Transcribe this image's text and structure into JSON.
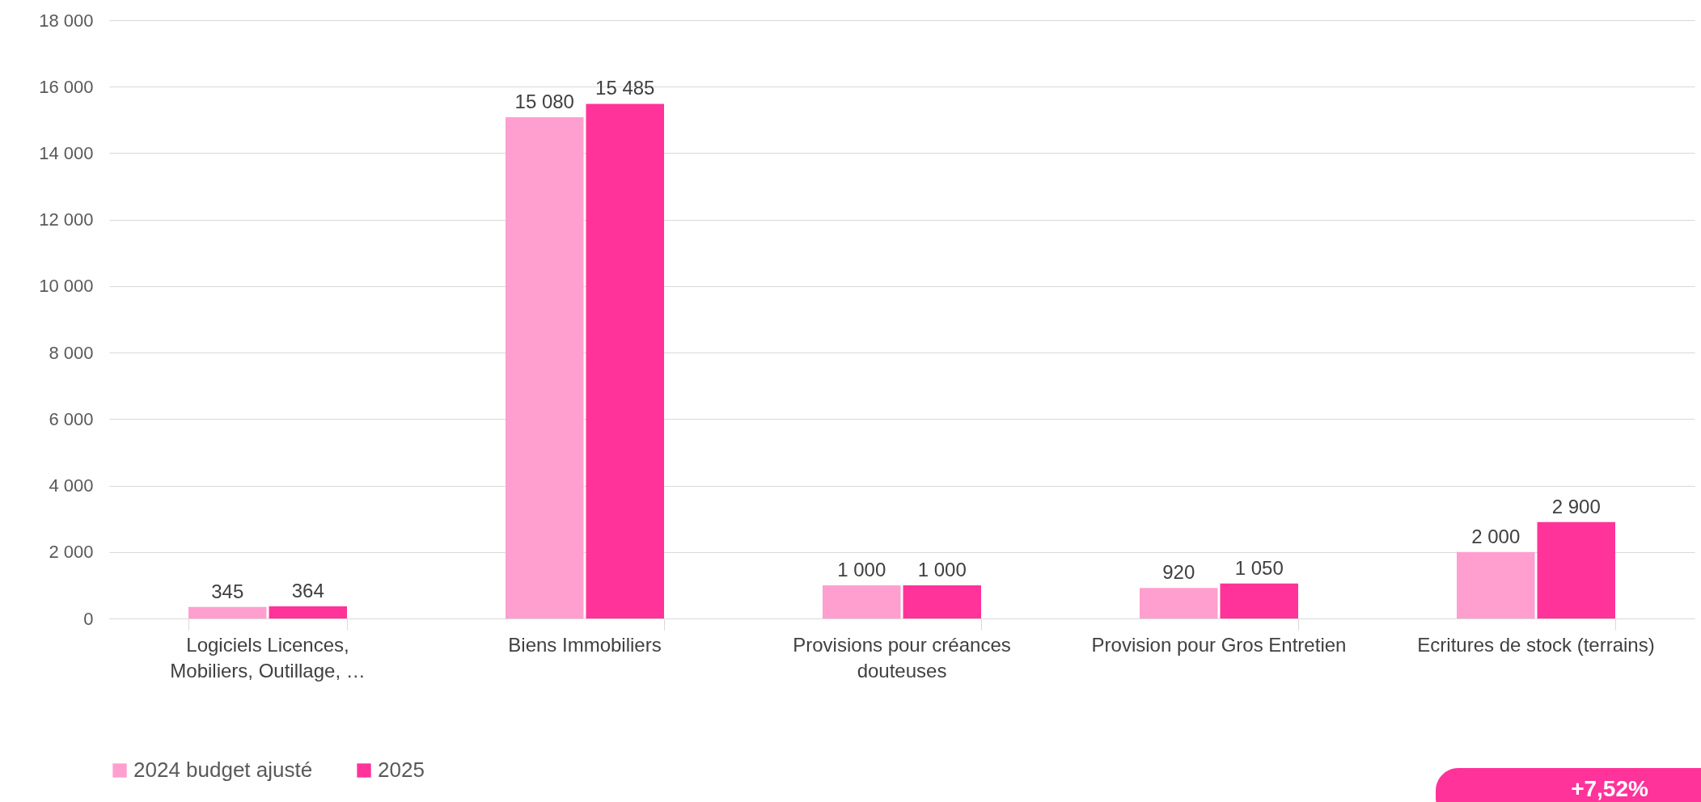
{
  "chart_data": {
    "type": "bar",
    "categories": [
      "Logiciels Licences, Mobiliers, Outillage, …",
      "Biens Immobiliers",
      "Provisions pour créances douteuses",
      "Provision pour Gros Entretien",
      "Ecritures de stock (terrains)"
    ],
    "series": [
      {
        "name": "2024 budget ajusté",
        "color": "#ff9fcf",
        "values": [
          345,
          15080,
          1000,
          920,
          2000
        ],
        "value_labels": [
          "345",
          "15 080",
          "1 000",
          "920",
          "2 000"
        ]
      },
      {
        "name": "2025",
        "color": "#ff3399",
        "values": [
          364,
          15485,
          1000,
          1050,
          2900
        ],
        "value_labels": [
          "364",
          "15 485",
          "1 000",
          "1 050",
          "2 900"
        ]
      }
    ],
    "ylim": [
      0,
      18000
    ],
    "yticks": [
      {
        "value": 0,
        "label": "0"
      },
      {
        "value": 2000,
        "label": "2 000"
      },
      {
        "value": 4000,
        "label": "4 000"
      },
      {
        "value": 6000,
        "label": "6 000"
      },
      {
        "value": 8000,
        "label": "8 000"
      },
      {
        "value": 10000,
        "label": "10 000"
      },
      {
        "value": 12000,
        "label": "12 000"
      },
      {
        "value": 14000,
        "label": "14 000"
      },
      {
        "value": 16000,
        "label": "16 000"
      },
      {
        "value": 18000,
        "label": "18 000"
      }
    ],
    "grid": "y",
    "legend": "bottom",
    "annotations": [
      "+7,52%"
    ]
  }
}
